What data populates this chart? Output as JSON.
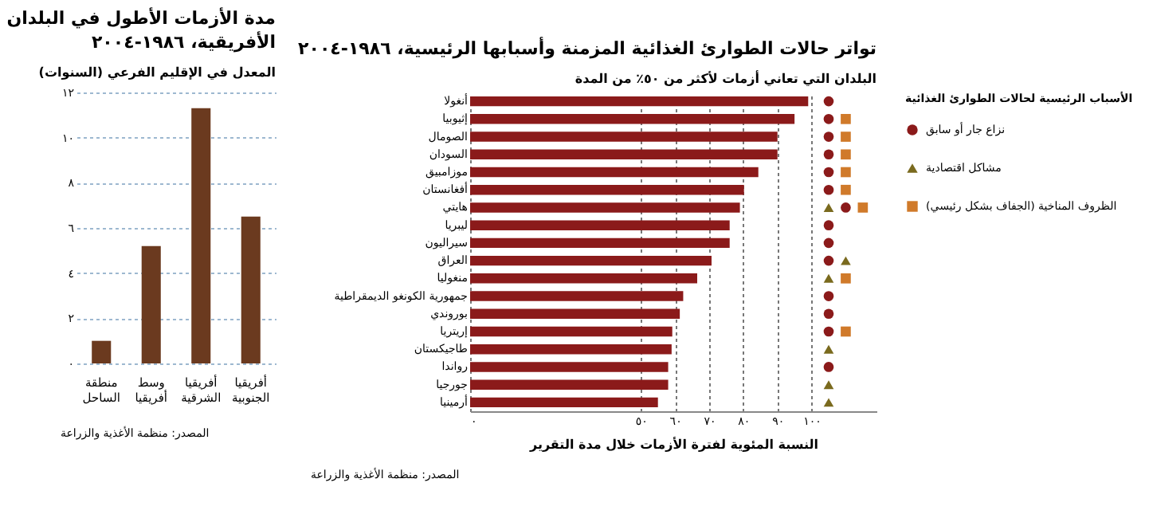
{
  "chart_data": [
    {
      "type": "bar",
      "title": "مدة الأزمات الأطول في البلدان الأفريقية، ١٩٨٦-٢٠٠٤",
      "ylabel": "المعدل في الإقليم الفرعي (السنوات)",
      "categories": [
        "منطقة الساحل",
        "وسط أفريقيا",
        "أفريقيا الشرقية",
        "أفريقيا الجنوبية"
      ],
      "values": [
        1,
        5.2,
        11.3,
        6.5
      ],
      "color": "#6b3a1f",
      "ylim": [
        0,
        12
      ],
      "yticks": [
        {
          "value": 0,
          "label": "٠"
        },
        {
          "value": 2,
          "label": "٢"
        },
        {
          "value": 4,
          "label": "٤"
        },
        {
          "value": 6,
          "label": "٦"
        },
        {
          "value": 8,
          "label": "٨"
        },
        {
          "value": 10,
          "label": "١٠"
        },
        {
          "value": 12,
          "label": "١٢"
        }
      ],
      "grid": "y",
      "annotations": [
        "المصدر: منظمة الأغذية والزراعة"
      ]
    },
    {
      "type": "bar",
      "orientation": "horizontal",
      "title": "تواتر حالات الطوارئ الغذائية المزمنة وأسبابها الرئيسية، ١٩٨٦-٢٠٠٤",
      "ylabel": "البلدان التي تعاني أزمات لأكثر من ٥٠٪ من المدة",
      "xlabel": "النسبة المئوية لفترة الأزمات خلال مدة التقرير",
      "legend_title": "الأسباب الرئيسية لحالات الطوارئ الغذائية",
      "categories": [
        "أنغولا",
        "إثيوبيا",
        "الصومال",
        "السودان",
        "موزامبيق",
        "أفغانستان",
        "هايتي",
        "ليبريا",
        "سيراليون",
        "العراق",
        "منغوليا",
        "جمهورية الكونغو الديمقراطية",
        "بوروندي",
        "إريتريا",
        "طاجيكستان",
        "رواندا",
        "جورجيا",
        "أرمينيا"
      ],
      "series": [
        {
          "type": "bar",
          "color": "#8b1a1a",
          "values": [
            99,
            95,
            90,
            90,
            84.4,
            80.2,
            79,
            76,
            76,
            70.7,
            66.5,
            62.4,
            61.4,
            59.2,
            59,
            58,
            58,
            55
          ]
        },
        {
          "type": "scatter",
          "name": "نزاع جار أو سابق",
          "marker": "circle",
          "color": "#8b1a1a",
          "values": [
            105,
            105,
            105,
            105,
            105,
            105,
            110,
            105,
            105,
            105,
            null,
            105,
            105,
            105,
            null,
            105,
            null,
            null
          ]
        },
        {
          "type": "scatter",
          "name": "مشاكل اقتصادية",
          "marker": "triangle",
          "color": "#7a6a1e",
          "values": [
            null,
            null,
            null,
            null,
            null,
            null,
            105,
            null,
            null,
            110,
            105,
            null,
            null,
            null,
            105,
            null,
            105,
            105
          ]
        },
        {
          "type": "scatter",
          "name": "الظروف المناخية (الجفاف بشكل رئيسي)",
          "marker": "square",
          "color": "#d07a2a",
          "values": [
            null,
            110,
            110,
            110,
            110,
            110,
            115,
            null,
            null,
            null,
            110,
            null,
            null,
            110,
            null,
            null,
            null,
            null
          ]
        }
      ],
      "xlim": [
        0,
        119
      ],
      "xticks": [
        {
          "value": 0,
          "label": "٠"
        },
        {
          "value": 50,
          "label": "٥٠"
        },
        {
          "value": 60,
          "label": "٦٠"
        },
        {
          "value": 70,
          "label": "٧٠"
        },
        {
          "value": 80,
          "label": "٨٠"
        },
        {
          "value": 90,
          "label": "٩٠"
        },
        {
          "value": 100,
          "label": "١٠٠"
        }
      ],
      "grid": "x",
      "legend": "right",
      "annotations": [
        "المصدر: منظمة الأغذية والزراعة"
      ]
    }
  ]
}
